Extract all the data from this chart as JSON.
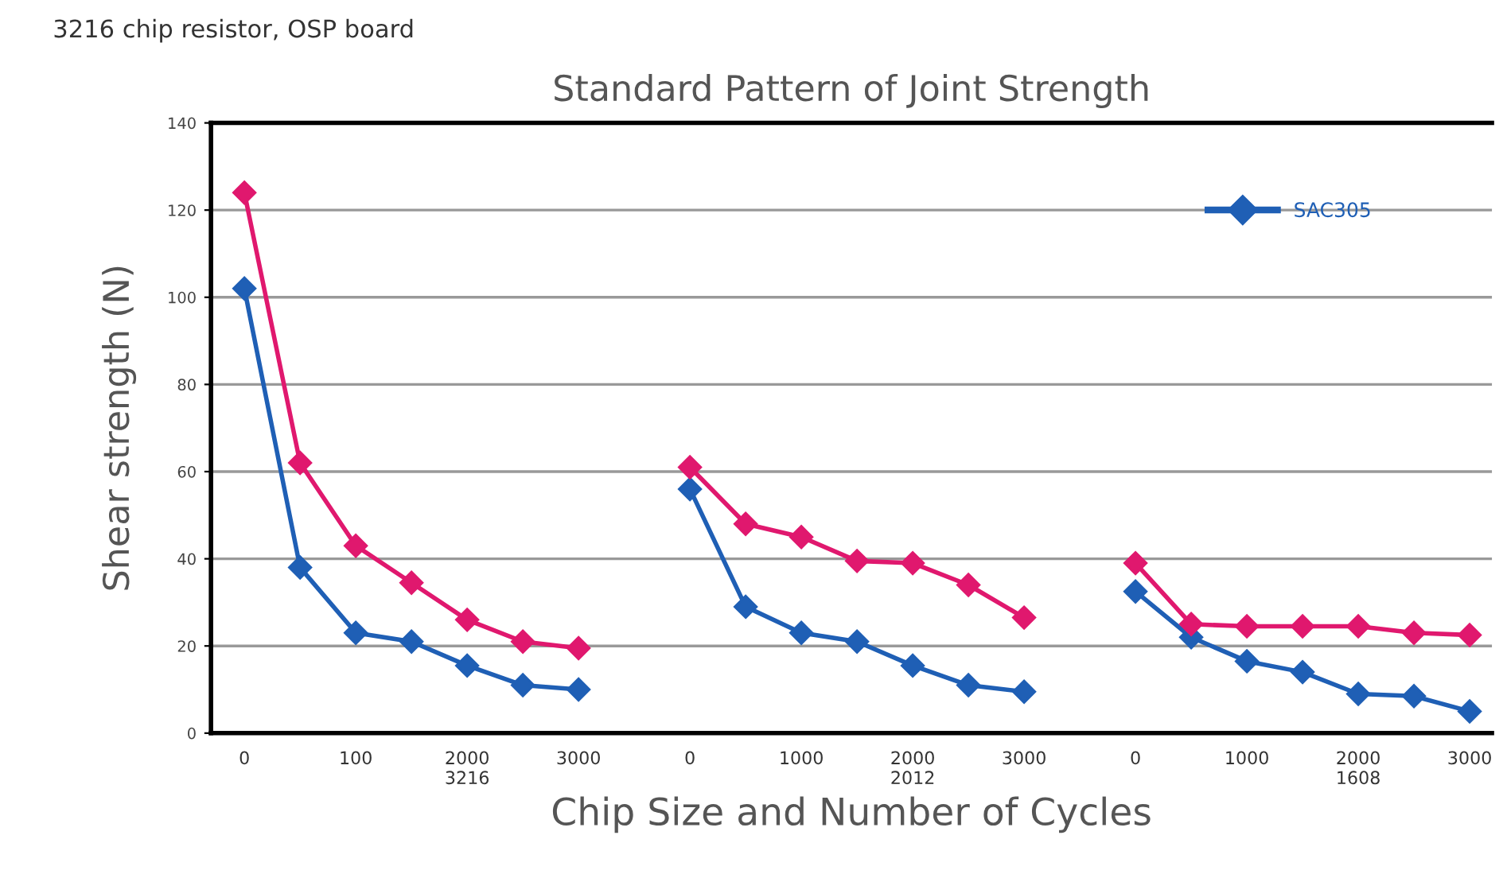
{
  "chart_data": {
    "type": "line",
    "title": "Standard Pattern of Joint Strength",
    "subtitle": "3216 chip resistor, OSP board",
    "xlabel": "Chip Size and Number of Cycles",
    "ylabel": "Shear strength (N)",
    "categories": [
      "0",
      null,
      "100",
      null,
      "2000\n3216",
      null,
      "3000",
      null,
      "0",
      null,
      "1000",
      null,
      "2000\n2012",
      null,
      "3000",
      null,
      "0",
      null,
      "1000",
      null,
      "2000\n1608",
      null,
      "3000"
    ],
    "series": [
      {
        "name": "SAC305",
        "color": "#1f5fb5",
        "values": [
          102,
          38,
          23,
          21,
          15.5,
          11,
          10,
          null,
          56,
          29,
          23,
          21,
          15.5,
          11,
          9.5,
          null,
          32.5,
          22,
          16.5,
          14,
          9,
          8.5,
          5
        ]
      },
      {
        "color": "#e0186e",
        "values": [
          124,
          62,
          43,
          34.5,
          26,
          21,
          19.5,
          null,
          61,
          48,
          45,
          39.5,
          39,
          34,
          26.5,
          null,
          39,
          25,
          24.5,
          24.5,
          24.5,
          23,
          22.5
        ]
      }
    ],
    "ylim": [
      0,
      140
    ],
    "yticks": [
      0,
      20,
      40,
      60,
      80,
      100,
      120,
      140
    ],
    "grid": "y",
    "legend": "top right",
    "marker": "diamond",
    "line_style": "solid"
  }
}
